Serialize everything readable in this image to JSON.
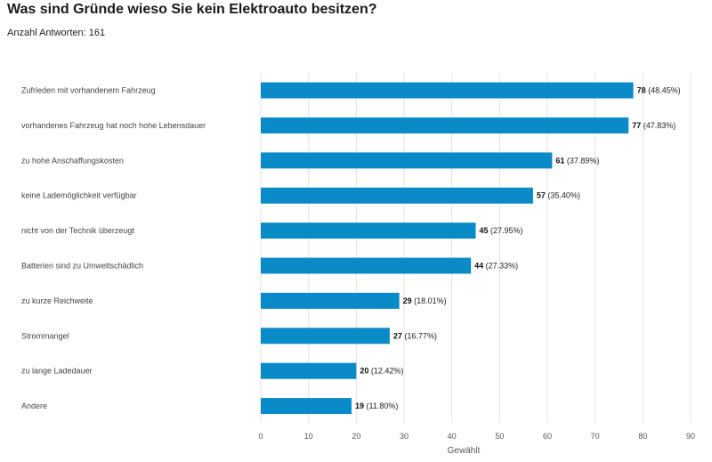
{
  "title": "Was sind Gründe wieso Sie kein Elektroauto besitzen?",
  "subtitle": "Anzahl Antworten: 161",
  "chart_data": {
    "type": "bar",
    "orientation": "horizontal",
    "title": "Was sind Gründe wieso Sie kein Elektroauto besitzen?",
    "xlabel": "Gewählt",
    "ylabel": "",
    "xlim": [
      0,
      90
    ],
    "xticks": [
      0,
      10,
      20,
      30,
      40,
      50,
      60,
      70,
      80,
      90
    ],
    "grid": true,
    "bar_color": "#0a8bc7",
    "categories": [
      "Zufrieden mit vorhandenem Fahrzeug",
      "vorhandenes Fahrzeug hat noch hohe Lebensdauer",
      "zu hohe Anschaffungskosten",
      "keine Lademöglichkeit verfügbar",
      "nicht von der Technik überzeugt",
      "Batterien sind zu Umweltschädlich",
      "zu kurze Reichweite",
      "Strommangel",
      "zu lange Ladedauer",
      "Andere"
    ],
    "values": [
      78,
      77,
      61,
      57,
      45,
      44,
      29,
      27,
      20,
      19
    ],
    "percent_labels": [
      "(48.45%)",
      "(47.83%)",
      "(37.89%)",
      "(35.40%)",
      "(27.95%)",
      "(27.33%)",
      "(18.01%)",
      "(16.77%)",
      "(12.42%)",
      "(11.80%)"
    ]
  }
}
